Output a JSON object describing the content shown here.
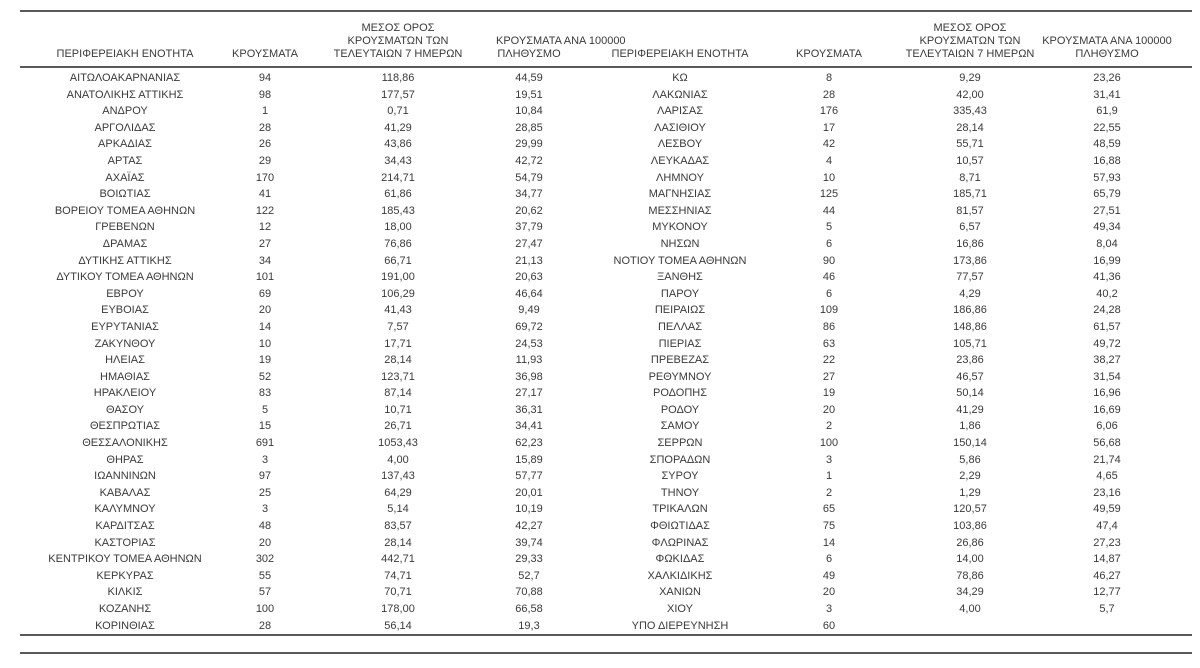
{
  "table": {
    "headers": {
      "region": "ΠΕΡΙΦΕΡΕΙΑΚΗ ΕΝΟΤΗΤΑ",
      "cases": "ΚΡΟΥΣΜΑΤΑ",
      "avg7": "ΜΕΣΟΣ ΟΡΟΣ\nΚΡΟΥΣΜΑΤΩΝ ΤΩΝ\nΤΕΛΕΥΤΑΙΩΝ 7 ΗΜΕΡΩΝ",
      "per100k": "ΚΡΟΥΣΜΑΤΑ ΑΝΑ 100000\nΠΛΗΘΥΣΜΟ"
    },
    "left_rows": [
      [
        "ΑΙΤΩΛΟΑΚΑΡΝΑΝΙΑΣ",
        "94",
        "118,86",
        "44,59"
      ],
      [
        "ΑΝΑΤΟΛΙΚΗΣ ΑΤΤΙΚΗΣ",
        "98",
        "177,57",
        "19,51"
      ],
      [
        "ΑΝΔΡΟΥ",
        "1",
        "0,71",
        "10,84"
      ],
      [
        "ΑΡΓΟΛΙΔΑΣ",
        "28",
        "41,29",
        "28,85"
      ],
      [
        "ΑΡΚΑΔΙΑΣ",
        "26",
        "43,86",
        "29,99"
      ],
      [
        "ΑΡΤΑΣ",
        "29",
        "34,43",
        "42,72"
      ],
      [
        "ΑΧΑΪΑΣ",
        "170",
        "214,71",
        "54,79"
      ],
      [
        "ΒΟΙΩΤΙΑΣ",
        "41",
        "61,86",
        "34,77"
      ],
      [
        "ΒΟΡΕΙΟΥ ΤΟΜΕΑ ΑΘΗΝΩΝ",
        "122",
        "185,43",
        "20,62"
      ],
      [
        "ΓΡΕΒΕΝΩΝ",
        "12",
        "18,00",
        "37,79"
      ],
      [
        "ΔΡΑΜΑΣ",
        "27",
        "76,86",
        "27,47"
      ],
      [
        "ΔΥΤΙΚΗΣ ΑΤΤΙΚΗΣ",
        "34",
        "66,71",
        "21,13"
      ],
      [
        "ΔΥΤΙΚΟΥ ΤΟΜΕΑ ΑΘΗΝΩΝ",
        "101",
        "191,00",
        "20,63"
      ],
      [
        "ΕΒΡΟΥ",
        "69",
        "106,29",
        "46,64"
      ],
      [
        "ΕΥΒΟΙΑΣ",
        "20",
        "41,43",
        "9,49"
      ],
      [
        "ΕΥΡΥΤΑΝΙΑΣ",
        "14",
        "7,57",
        "69,72"
      ],
      [
        "ΖΑΚΥΝΘΟΥ",
        "10",
        "17,71",
        "24,53"
      ],
      [
        "ΗΛΕΙΑΣ",
        "19",
        "28,14",
        "11,93"
      ],
      [
        "ΗΜΑΘΙΑΣ",
        "52",
        "123,71",
        "36,98"
      ],
      [
        "ΗΡΑΚΛΕΙΟΥ",
        "83",
        "87,14",
        "27,17"
      ],
      [
        "ΘΑΣΟΥ",
        "5",
        "10,71",
        "36,31"
      ],
      [
        "ΘΕΣΠΡΩΤΙΑΣ",
        "15",
        "26,71",
        "34,41"
      ],
      [
        "ΘΕΣΣΑΛΟΝΙΚΗΣ",
        "691",
        "1053,43",
        "62,23"
      ],
      [
        "ΘΗΡΑΣ",
        "3",
        "4,00",
        "15,89"
      ],
      [
        "ΙΩΑΝΝΙΝΩΝ",
        "97",
        "137,43",
        "57,77"
      ],
      [
        "ΚΑΒΑΛΑΣ",
        "25",
        "64,29",
        "20,01"
      ],
      [
        "ΚΑΛΥΜΝΟΥ",
        "3",
        "5,14",
        "10,19"
      ],
      [
        "ΚΑΡΔΙΤΣΑΣ",
        "48",
        "83,57",
        "42,27"
      ],
      [
        "ΚΑΣΤΟΡΙΑΣ",
        "20",
        "28,14",
        "39,74"
      ],
      [
        "ΚΕΝΤΡΙΚΟΥ ΤΟΜΕΑ ΑΘΗΝΩΝ",
        "302",
        "442,71",
        "29,33"
      ],
      [
        "ΚΕΡΚΥΡΑΣ",
        "55",
        "74,71",
        "52,7"
      ],
      [
        "ΚΙΛΚΙΣ",
        "57",
        "70,71",
        "70,88"
      ],
      [
        "ΚΟΖΑΝΗΣ",
        "100",
        "178,00",
        "66,58"
      ],
      [
        "ΚΟΡΙΝΘΙΑΣ",
        "28",
        "56,14",
        "19,3"
      ]
    ],
    "right_rows": [
      [
        "ΚΩ",
        "8",
        "9,29",
        "23,26"
      ],
      [
        "ΛΑΚΩΝΙΑΣ",
        "28",
        "42,00",
        "31,41"
      ],
      [
        "ΛΑΡΙΣΑΣ",
        "176",
        "335,43",
        "61,9"
      ],
      [
        "ΛΑΣΙΘΙΟΥ",
        "17",
        "28,14",
        "22,55"
      ],
      [
        "ΛΕΣΒΟΥ",
        "42",
        "55,71",
        "48,59"
      ],
      [
        "ΛΕΥΚΑΔΑΣ",
        "4",
        "10,57",
        "16,88"
      ],
      [
        "ΛΗΜΝΟΥ",
        "10",
        "8,71",
        "57,93"
      ],
      [
        "ΜΑΓΝΗΣΙΑΣ",
        "125",
        "185,71",
        "65,79"
      ],
      [
        "ΜΕΣΣΗΝΙΑΣ",
        "44",
        "81,57",
        "27,51"
      ],
      [
        "ΜΥΚΟΝΟΥ",
        "5",
        "6,57",
        "49,34"
      ],
      [
        "ΝΗΣΩΝ",
        "6",
        "16,86",
        "8,04"
      ],
      [
        "ΝΟΤΙΟΥ ΤΟΜΕΑ ΑΘΗΝΩΝ",
        "90",
        "173,86",
        "16,99"
      ],
      [
        "ΞΑΝΘΗΣ",
        "46",
        "77,57",
        "41,36"
      ],
      [
        "ΠΑΡΟΥ",
        "6",
        "4,29",
        "40,2"
      ],
      [
        "ΠΕΙΡΑΙΩΣ",
        "109",
        "186,86",
        "24,28"
      ],
      [
        "ΠΕΛΛΑΣ",
        "86",
        "148,86",
        "61,57"
      ],
      [
        "ΠΙΕΡΙΑΣ",
        "63",
        "105,71",
        "49,72"
      ],
      [
        "ΠΡΕΒΕΖΑΣ",
        "22",
        "23,86",
        "38,27"
      ],
      [
        "ΡΕΘΥΜΝΟΥ",
        "27",
        "46,57",
        "31,54"
      ],
      [
        "ΡΟΔΟΠΗΣ",
        "19",
        "50,14",
        "16,96"
      ],
      [
        "ΡΟΔΟΥ",
        "20",
        "41,29",
        "16,69"
      ],
      [
        "ΣΑΜΟΥ",
        "2",
        "1,86",
        "6,06"
      ],
      [
        "ΣΕΡΡΩΝ",
        "100",
        "150,14",
        "56,68"
      ],
      [
        "ΣΠΟΡΑΔΩΝ",
        "3",
        "5,86",
        "21,74"
      ],
      [
        "ΣΥΡΟΥ",
        "1",
        "2,29",
        "4,65"
      ],
      [
        "ΤΗΝΟΥ",
        "2",
        "1,29",
        "23,16"
      ],
      [
        "ΤΡΙΚΑΛΩΝ",
        "65",
        "120,57",
        "49,59"
      ],
      [
        "ΦΘΙΩΤΙΔΑΣ",
        "75",
        "103,86",
        "47,4"
      ],
      [
        "ΦΛΩΡΙΝΑΣ",
        "14",
        "26,86",
        "27,23"
      ],
      [
        "ΦΩΚΙΔΑΣ",
        "6",
        "14,00",
        "14,87"
      ],
      [
        "ΧΑΛΚΙΔΙΚΗΣ",
        "49",
        "78,86",
        "46,27"
      ],
      [
        "ΧΑΝΙΩΝ",
        "20",
        "34,29",
        "12,77"
      ],
      [
        "ΧΙΟΥ",
        "3",
        "4,00",
        "5,7"
      ],
      [
        "ΥΠΟ ΔΙΕΡΕΥΝΗΣΗ",
        "60",
        "",
        ""
      ]
    ]
  },
  "colors": {
    "text": "#3a3a3a",
    "rule_line": "#595959",
    "background": "#ffffff"
  }
}
